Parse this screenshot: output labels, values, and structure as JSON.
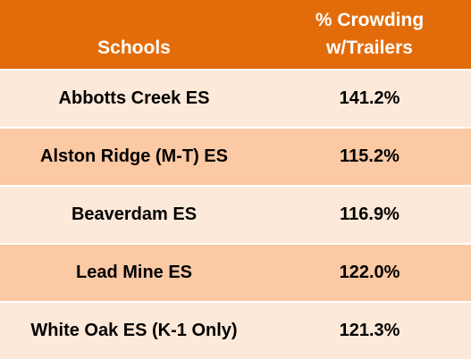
{
  "table": {
    "header": {
      "schools": "Schools",
      "crowding": [
        "% Crowding",
        "w/Trailers"
      ]
    },
    "rows": [
      [
        "Abbotts Creek ES",
        "141.2%"
      ],
      [
        "Alston Ridge (M-T) ES",
        "115.2%"
      ],
      [
        "Beaverdam ES",
        "116.9%"
      ],
      [
        "Lead Mine ES",
        "122.0%"
      ],
      [
        "White Oak ES (K-1 Only)",
        "121.3%"
      ]
    ]
  }
}
